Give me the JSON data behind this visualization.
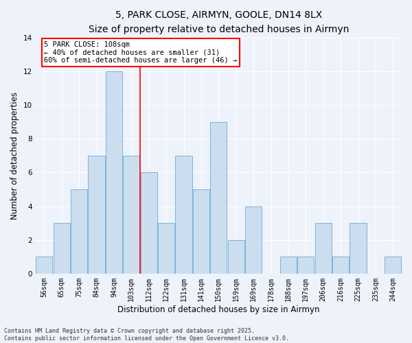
{
  "title": "5, PARK CLOSE, AIRMYN, GOOLE, DN14 8LX",
  "subtitle": "Size of property relative to detached houses in Airmyn",
  "xlabel": "Distribution of detached houses by size in Airmyn",
  "ylabel": "Number of detached properties",
  "footer_line1": "Contains HM Land Registry data © Crown copyright and database right 2025.",
  "footer_line2": "Contains public sector information licensed under the Open Government Licence v3.0.",
  "bin_labels": [
    "56sqm",
    "65sqm",
    "75sqm",
    "84sqm",
    "94sqm",
    "103sqm",
    "112sqm",
    "122sqm",
    "131sqm",
    "141sqm",
    "150sqm",
    "159sqm",
    "169sqm",
    "178sqm",
    "188sqm",
    "197sqm",
    "206sqm",
    "216sqm",
    "225sqm",
    "235sqm",
    "244sqm"
  ],
  "bar_values": [
    1,
    3,
    5,
    7,
    12,
    7,
    6,
    3,
    7,
    5,
    9,
    2,
    4,
    0,
    1,
    1,
    3,
    1,
    3,
    0,
    1
  ],
  "bar_color": "#ccddf0",
  "bar_edgecolor": "#7ab4d8",
  "red_line_x": 5.5,
  "annotation_text": "5 PARK CLOSE: 108sqm\n← 40% of detached houses are smaller (31)\n60% of semi-detached houses are larger (46) →",
  "annotation_box_color": "white",
  "annotation_box_edgecolor": "red",
  "highlight_line_color": "red",
  "ylim": [
    0,
    14
  ],
  "yticks": [
    0,
    2,
    4,
    6,
    8,
    10,
    12,
    14
  ],
  "background_color": "#eef2fa",
  "grid_color": "white",
  "title_fontsize": 10,
  "subtitle_fontsize": 9,
  "axis_label_fontsize": 8.5,
  "tick_fontsize": 7,
  "footer_fontsize": 6,
  "annotation_fontsize": 7.5
}
